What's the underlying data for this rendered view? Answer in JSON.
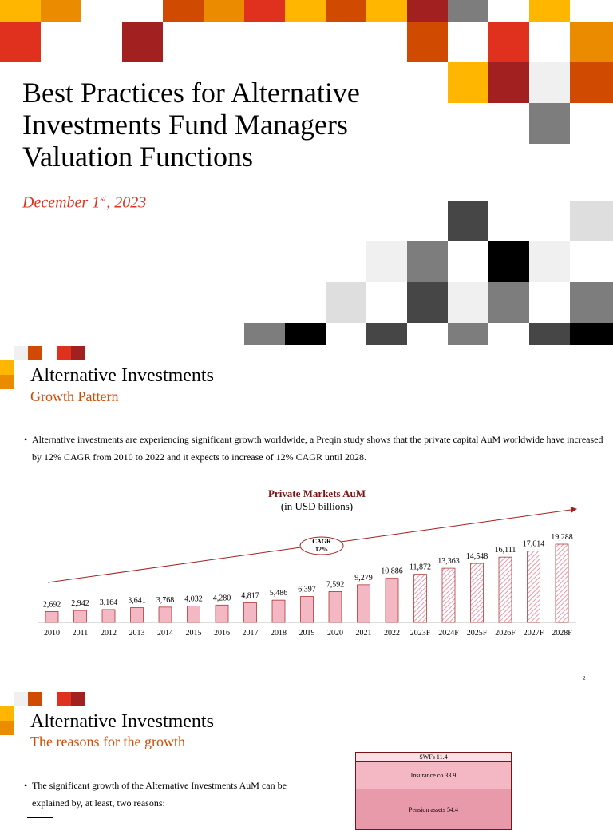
{
  "title_slide": {
    "title_lines": [
      "Best Practices for Alternative",
      "Investments Fund Managers",
      "Valuation Functions"
    ],
    "date": {
      "text": "December 1",
      "sup": "st",
      "rest": ", 2023"
    }
  },
  "growth_slide": {
    "title": "Alternative Investments",
    "subtitle": "Growth Pattern",
    "bullet": "Alternative investments are experiencing significant growth worldwide, a Preqin study shows that the private capital AuM worldwide have increased by 12% CAGR from 2010 to 2022 and it expects to increase of 12% CAGR until 2028.",
    "chart": {
      "type": "bar",
      "title": "Private Markets AuM",
      "subtitle": "(in USD billions)",
      "categories": [
        "2010",
        "2011",
        "2012",
        "2013",
        "2014",
        "2015",
        "2016",
        "2017",
        "2018",
        "2019",
        "2020",
        "2021",
        "2022",
        "2023F",
        "2024F",
        "2025F",
        "2026F",
        "2027F",
        "2028F"
      ],
      "values": [
        2692,
        2942,
        3164,
        3641,
        3768,
        4032,
        4280,
        4817,
        5486,
        6397,
        7592,
        9279,
        10886,
        11872,
        13363,
        14548,
        16111,
        17614,
        19288
      ],
      "value_labels": [
        "2,692",
        "2,942",
        "3,164",
        "3,641",
        "3,768",
        "4,032",
        "4,280",
        "4,817",
        "5,486",
        "6,397",
        "7,592",
        "9,279",
        "10,886",
        "11,872",
        "13,363",
        "14,548",
        "16,111",
        "17,614",
        "19,288"
      ],
      "color": "#f4b8c4",
      "edge_color": "#a32020",
      "annotation": [
        "CAGR",
        "12%"
      ]
    },
    "page_number": "2"
  },
  "reasons_slide": {
    "title": "Alternative Investments",
    "subtitle": "The reasons for the growth",
    "bullet": "The significant growth of the Alternative Investments AuM can be explained by, at least, two reasons:",
    "stack_labels": [
      "SWFs 11.4",
      "Insurance co 33.9",
      "Pension assets 54.4"
    ]
  }
}
